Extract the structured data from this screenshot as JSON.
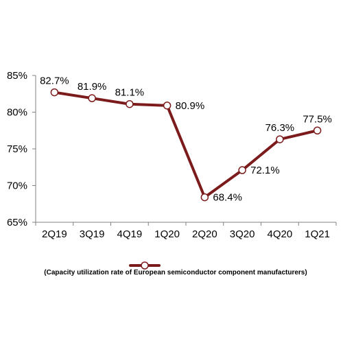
{
  "chart_data": {
    "type": "line",
    "categories": [
      "2Q19",
      "3Q19",
      "4Q19",
      "1Q20",
      "2Q20",
      "3Q20",
      "4Q20",
      "1Q21"
    ],
    "series": [
      {
        "name": "(Capacity utilization rate of European semiconductor component manufacturers)",
        "values": [
          82.7,
          81.9,
          81.1,
          80.9,
          68.4,
          72.1,
          76.3,
          77.5
        ],
        "color": "#7b1b1b"
      }
    ],
    "data_labels": [
      "82.7%",
      "81.9%",
      "81.1%",
      "80.9%",
      "68.4%",
      "72.1%",
      "76.3%",
      "77.5%"
    ],
    "title": "",
    "xlabel": "",
    "ylabel": "",
    "ylim": [
      65,
      85
    ],
    "yticks": [
      65,
      70,
      75,
      80,
      85
    ],
    "ytick_labels": [
      "65%",
      "70%",
      "75%",
      "80%",
      "85%"
    ],
    "grid": false,
    "legend": "bottom"
  }
}
